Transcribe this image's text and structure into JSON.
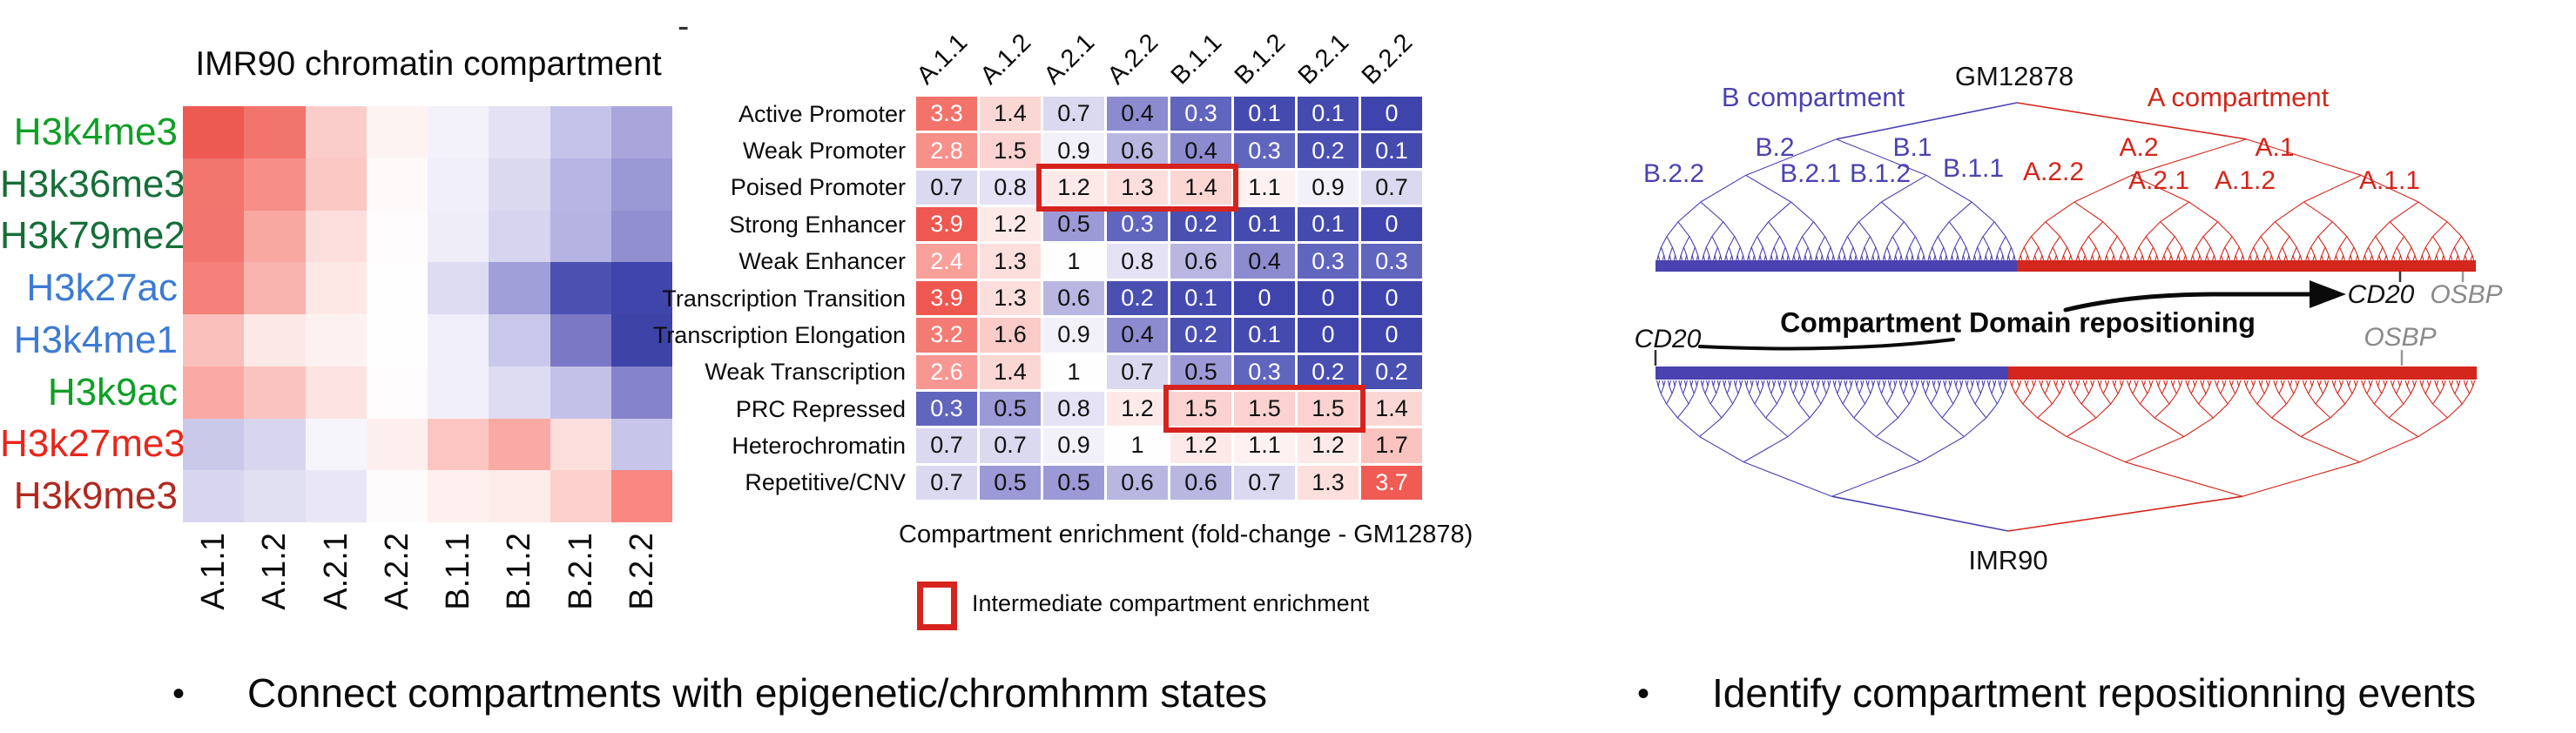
{
  "misc": {
    "stray_dash": "-"
  },
  "bullets": [
    {
      "marker": "•",
      "text": "Connect compartments with epigenetic/chromhmm states"
    },
    {
      "marker": "•",
      "text": "Identify compartment repositionning events"
    }
  ],
  "chart_data": [
    {
      "type": "heatmap",
      "title": "IMR90 chromatin compartment",
      "columns": [
        "A.1.1",
        "A.1.2",
        "A.2.1",
        "A.2.2",
        "B.1.1",
        "B.1.2",
        "B.2.1",
        "B.2.2"
      ],
      "rows": [
        "H3k4me3",
        "H3k36me3",
        "H3k79me2",
        "H3k27ac",
        "H3k4me1",
        "H3k9ac",
        "H3k27me3",
        "H3k9me3"
      ],
      "row_label_colors": [
        "#0f9f27",
        "#156e38",
        "#156e38",
        "#3d7bd3",
        "#3d7bd3",
        "#0f9f27",
        "#e8261b",
        "#b0291f"
      ],
      "legend_position": "none",
      "grid": false,
      "cell_colors": [
        [
          "#ec5a52",
          "#f1746d",
          "#fbcdca",
          "#fdf3f2",
          "#f3f2fa",
          "#e3e1f3",
          "#c5c3e9",
          "#a8a6db"
        ],
        [
          "#f2756e",
          "#f68f88",
          "#fbc8c4",
          "#fefafa",
          "#f0effa",
          "#dbd9f0",
          "#b7b5e3",
          "#9a98d5"
        ],
        [
          "#f2766f",
          "#f8a7a1",
          "#fcdfdd",
          "#fefcfc",
          "#eeedf8",
          "#d6d4ee",
          "#b5b3e2",
          "#918fd0"
        ],
        [
          "#f6807a",
          "#fab4af",
          "#fde8e6",
          "#fefefe",
          "#dedcf2",
          "#a19fd9",
          "#4c51b1",
          "#3f45aa"
        ],
        [
          "#fac0bc",
          "#fce9e7",
          "#fef2f1",
          "#fffefe",
          "#efeef9",
          "#cac8ea",
          "#7b78c6",
          "#3e43a8"
        ],
        [
          "#fba9a4",
          "#fbc3bf",
          "#fde3e1",
          "#fefcfc",
          "#f1f0fa",
          "#dedcf2",
          "#c3c1e8",
          "#8583cb"
        ],
        [
          "#cbc9ea",
          "#d8d6ef",
          "#f6f5fb",
          "#fdefee",
          "#fbc5c1",
          "#fba9a4",
          "#fcdedc",
          "#c7c5ea"
        ],
        [
          "#d8d6ef",
          "#e1dff2",
          "#e9e7f6",
          "#fefbfc",
          "#fdf0ef",
          "#fcebe9",
          "#fbd0cd",
          "#f98882"
        ]
      ]
    },
    {
      "type": "heatmap",
      "caption": "Compartment enrichment (fold-change - GM12878)",
      "columns": [
        "A.1.1",
        "A.1.2",
        "A.2.1",
        "A.2.2",
        "B.1.1",
        "B.1.2",
        "B.2.1",
        "B.2.2"
      ],
      "rows": [
        "Active Promoter",
        "Weak Promoter",
        "Poised Promoter",
        "Strong Enhancer",
        "Weak Enhancer",
        "Transcription Transition",
        "Transcription Elongation",
        "Weak Transcription",
        "PRC Repressed",
        "Heterochromatin",
        "Repetitive/CNV"
      ],
      "values": [
        [
          "3.3",
          "1.4",
          "0.7",
          "0.4",
          "0.3",
          "0.1",
          "0.1",
          "0"
        ],
        [
          "2.8",
          "1.5",
          "0.9",
          "0.6",
          "0.4",
          "0.3",
          "0.2",
          "0.1"
        ],
        [
          "0.7",
          "0.8",
          "1.2",
          "1.3",
          "1.4",
          "1.1",
          "0.9",
          "0.7"
        ],
        [
          "3.9",
          "1.2",
          "0.5",
          "0.3",
          "0.2",
          "0.1",
          "0.1",
          "0"
        ],
        [
          "2.4",
          "1.3",
          "1",
          "0.8",
          "0.6",
          "0.4",
          "0.3",
          "0.3"
        ],
        [
          "3.9",
          "1.3",
          "0.6",
          "0.2",
          "0.1",
          "0",
          "0",
          "0"
        ],
        [
          "3.2",
          "1.6",
          "0.9",
          "0.4",
          "0.2",
          "0.1",
          "0",
          "0"
        ],
        [
          "2.6",
          "1.4",
          "1",
          "0.7",
          "0.5",
          "0.3",
          "0.2",
          "0.2"
        ],
        [
          "0.3",
          "0.5",
          "0.8",
          "1.2",
          "1.5",
          "1.5",
          "1.5",
          "1.4"
        ],
        [
          "0.7",
          "0.7",
          "0.9",
          "1",
          "1.2",
          "1.1",
          "1.2",
          "1.7"
        ],
        [
          "0.7",
          "0.5",
          "0.5",
          "0.6",
          "0.6",
          "0.7",
          "1.3",
          "3.7"
        ]
      ],
      "highlights": [
        {
          "row_label": "Poised Promoter",
          "row": 2,
          "col_start": 2,
          "col_end": 4
        },
        {
          "row_label": "PRC Repressed",
          "row": 8,
          "col_start": 4,
          "col_end": 6
        }
      ],
      "highlight_color": "#d7231e",
      "legend": {
        "marker": "red-outline-box",
        "label": "Intermediate compartment enrichment"
      },
      "colormap_anchors": [
        [
          0,
          "#3f44ac"
        ],
        [
          0.2,
          "#4a4fb2"
        ],
        [
          0.3,
          "#6065bd"
        ],
        [
          0.4,
          "#8d8bcf"
        ],
        [
          0.5,
          "#9c9ad6"
        ],
        [
          0.6,
          "#b9b7e2"
        ],
        [
          0.7,
          "#dbd9f0"
        ],
        [
          0.8,
          "#e4e2f4"
        ],
        [
          0.9,
          "#f2f1fa"
        ],
        [
          1,
          "#fefefe"
        ],
        [
          1.1,
          "#fdf2f1"
        ],
        [
          1.2,
          "#fdeae8"
        ],
        [
          1.3,
          "#fcdfdd"
        ],
        [
          1.4,
          "#fbd7d4"
        ],
        [
          1.5,
          "#fbd2cf"
        ],
        [
          1.7,
          "#fbc3bf"
        ],
        [
          2.4,
          "#f9a09a"
        ],
        [
          2.6,
          "#f89791"
        ],
        [
          2.8,
          "#f8908a"
        ],
        [
          3.2,
          "#f47b73"
        ],
        [
          3.3,
          "#f3736b"
        ],
        [
          3.7,
          "#f05b53"
        ],
        [
          3.9,
          "#ee5850"
        ]
      ]
    },
    {
      "type": "dendrogram-pair",
      "top_cell_line": "GM12878",
      "bottom_cell_line": "IMR90",
      "left_branch": "B compartment",
      "right_branch": "A compartment",
      "annotation": "Compartment Domain repositioning",
      "b_color": "#4a42b0",
      "a_color": "#d3261c",
      "gene_gray": "#8a8a8a",
      "labels": {
        "b2": "B.2",
        "b1": "B.1",
        "a2": "A.2",
        "a1": "A.1",
        "b22": "B.2.2",
        "b21": "B.2.1",
        "b12": "B.1.2",
        "b11": "B.1.1",
        "a22": "A.2.2",
        "a21": "A.2.1",
        "a12": "A.1.2",
        "a11": "A.1.1"
      },
      "gene_labels": {
        "cd20_gm12878": "CD20",
        "osbp_gm12878": "OSBP",
        "cd20_imr90": "CD20",
        "osbp_imr90": "OSBP"
      }
    }
  ]
}
